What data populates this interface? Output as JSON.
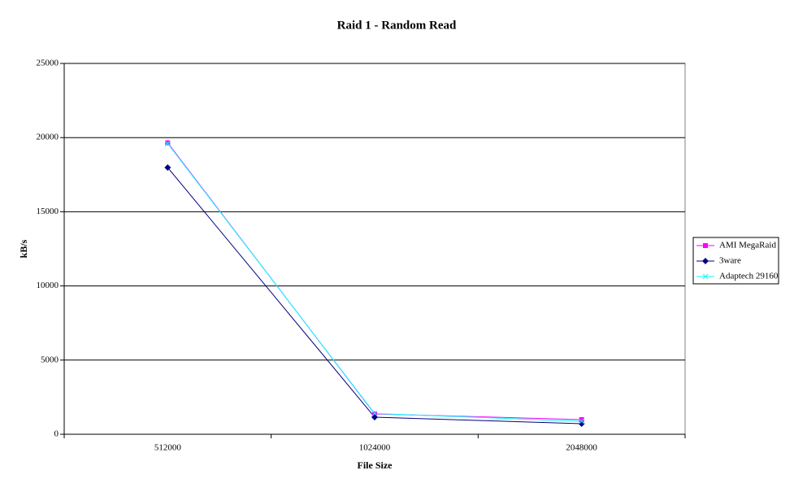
{
  "chart_data": {
    "type": "line",
    "title": "Raid 1 - Random Read",
    "x_label": "File Size",
    "y_label": "kB/s",
    "categories": [
      "512000",
      "1024000",
      "2048000"
    ],
    "series": [
      {
        "name": "AMI MegaRaid",
        "color": "#ff00ff",
        "marker": "square",
        "values": [
          19650,
          1370,
          990
        ]
      },
      {
        "name": "3ware",
        "color": "#000080",
        "marker": "diamond",
        "values": [
          17980,
          1150,
          710
        ]
      },
      {
        "name": "Adaptech 29160",
        "color": "#00ffff",
        "marker": "x",
        "values": [
          19600,
          1400,
          880
        ]
      }
    ],
    "ylim": [
      0,
      25000
    ],
    "yticks": [
      0,
      5000,
      10000,
      15000,
      20000,
      25000
    ],
    "grid": true,
    "legend": "right"
  }
}
